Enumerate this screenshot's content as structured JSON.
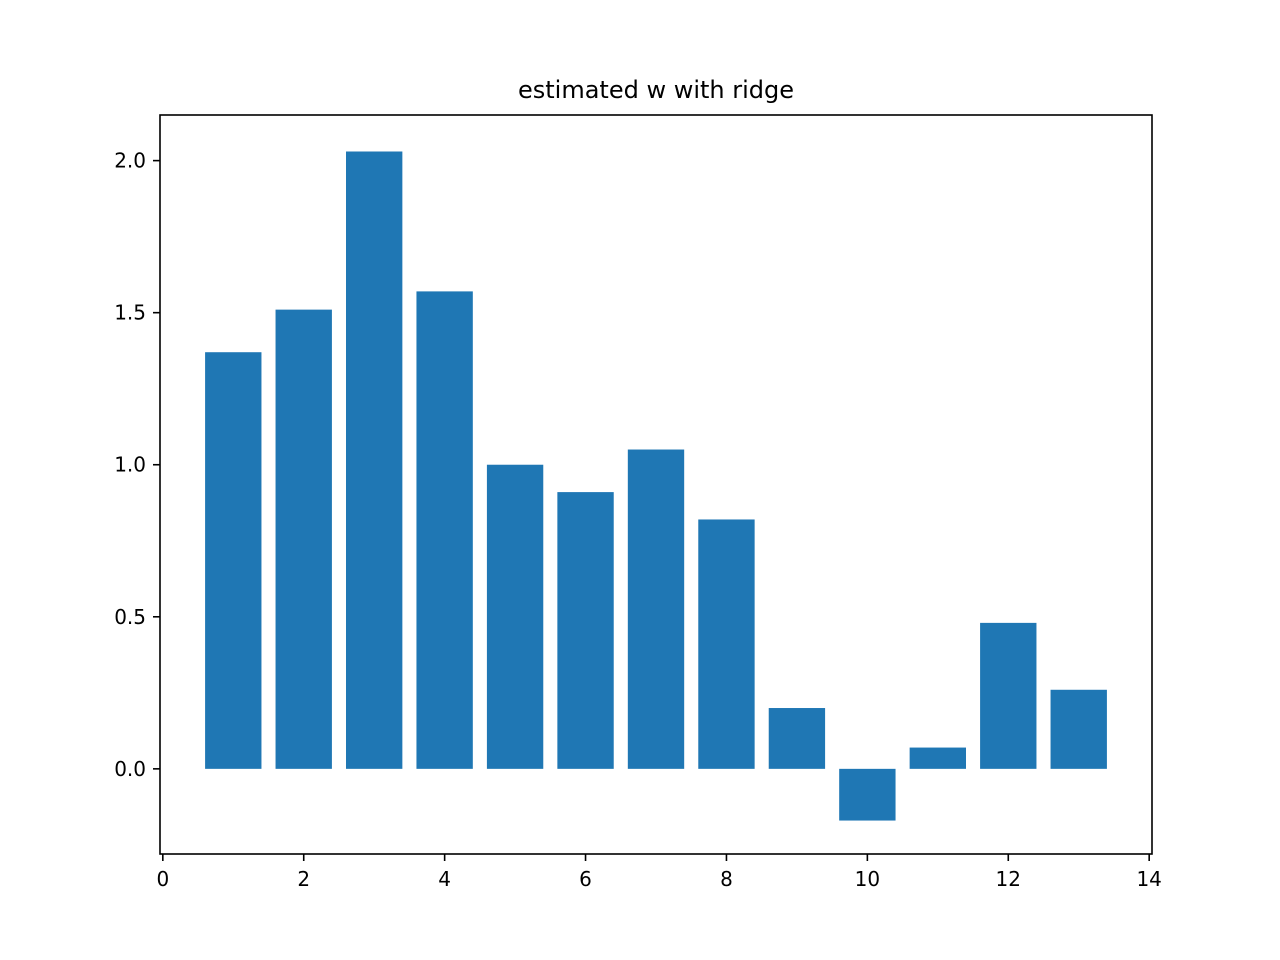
{
  "chart_data": {
    "type": "bar",
    "title": "estimated w with ridge",
    "xlabel": "",
    "ylabel": "",
    "x": [
      1,
      2,
      3,
      4,
      5,
      6,
      7,
      8,
      9,
      10,
      11,
      12,
      13
    ],
    "values": [
      1.37,
      1.51,
      2.03,
      1.57,
      1.0,
      0.91,
      1.05,
      0.82,
      0.2,
      -0.17,
      0.07,
      0.48,
      0.26
    ],
    "bar_width": 0.8,
    "xlim": [
      -0.04,
      14.04
    ],
    "ylim": [
      -0.28,
      2.15
    ],
    "xticks": [
      0,
      2,
      4,
      6,
      8,
      10,
      12,
      14
    ],
    "xtick_labels": [
      "0",
      "2",
      "4",
      "6",
      "8",
      "10",
      "12",
      "14"
    ],
    "yticks": [
      0.0,
      0.5,
      1.0,
      1.5,
      2.0
    ],
    "ytick_labels": [
      "0.0",
      "0.5",
      "1.0",
      "1.5",
      "2.0"
    ],
    "grid": false,
    "bar_color": "#1f77b4"
  }
}
